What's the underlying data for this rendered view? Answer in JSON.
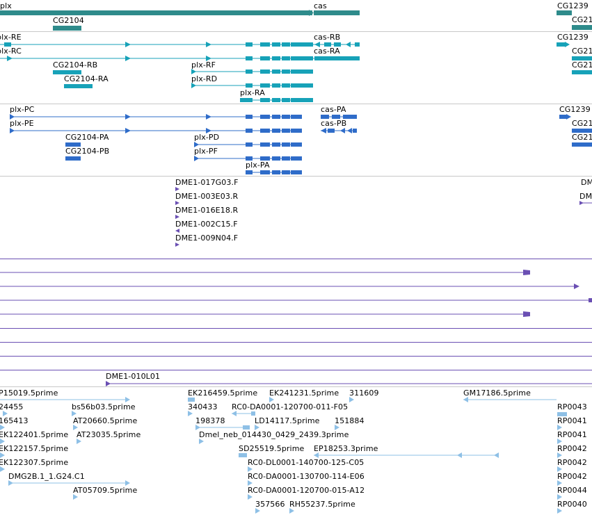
{
  "tracks": {
    "genes": {
      "color": "#2e8b8b",
      "labels": {
        "plx": "plx",
        "cas": "cas",
        "cg2104": "CG2104",
        "cg1239": "CG1239"
      }
    },
    "transcripts_flybase": {
      "color": "#17a2b8",
      "labels": {
        "plx_re": "plx-RE",
        "plx_rc": "plx-RC",
        "cas_rb": "cas-RB",
        "cas_ra": "cas-RA",
        "cg1239_a": "CG1239",
        "cg2104_rb": "CG2104-RB",
        "cg2104_ra": "CG2104-RA",
        "plx_rf": "plx-RF",
        "plx_rd": "plx-RD",
        "plx_ra": "plx-RA"
      }
    },
    "transcripts_protein": {
      "color": "#2f6cc9",
      "labels": {
        "plx_pc": "plx-PC",
        "plx_pe": "plx-PE",
        "cas_pa": "cas-PA",
        "cas_pb": "cas-PB",
        "cg1239_b": "CG1239",
        "cg2104_pa": "CG2104-PA",
        "cg2104_pb": "CG2104-PB",
        "plx_pd": "plx-PD",
        "plx_pf": "plx-PF",
        "plx_pa": "plx-PA"
      }
    },
    "bac_ends": {
      "color": "#6a4fb3",
      "labels": {
        "dme1_017g03": "DME1-017G03.F",
        "dme1_003e03": "DME1-003E03.R",
        "dme1_016e18": "DME1-016E18.R",
        "dme1_002c15": "DME1-002C15.F",
        "dme1_009n04": "DME1-009N04.F",
        "dme1_010l01": "DME1-010L01",
        "dm_a": "DM",
        "dm_b": "DM"
      }
    },
    "ests": {
      "color": "#8ec0e6",
      "labels": {
        "p15019": "P15019.5prime",
        "n24455": "24455",
        "bs56b03": "bs56b03.5prime",
        "n165413": "165413",
        "at20660": "AT20660.5prime",
        "ek122401": "EK122401.5prime",
        "at23035": "AT23035.5prime",
        "ek122157": "EK122157.5prime",
        "ek122307": "EK122307.5prime",
        "dmg2b": "DMG2B.1_1.G24.C1",
        "at05709": "AT05709.5prime",
        "ek216459": "EK216459.5prime",
        "ek241231": "EK241231.5prime",
        "n311609": "311609",
        "gm17186": "GM17186.5prime",
        "n340433": "340433",
        "rc0_da_011": "RC0-DA0001-120700-011-F05",
        "n198378": "198378",
        "ld14117": "LD14117.5prime",
        "n151884": "151884",
        "dmel_neb": "Dmel_neb_014430_0429_2439.3prime",
        "sd25519": "SD25519.5prime",
        "ep18253": "EP18253.3prime",
        "rc0_dl_125": "RC0-DL0001-140700-125-C05",
        "rc0_da_114": "RC0-DA0001-130700-114-E06",
        "rc0_da_015": "RC0-DA0001-120700-015-A12",
        "n357566": "357566",
        "rh55237": "RH55237.5prime",
        "rp_1": "RP0043",
        "rp_2": "RP0041",
        "rp_3": "RP0041",
        "rp_4": "RP0042",
        "rp_5": "RP0042",
        "rp_6": "RP0042",
        "rp_7": "RP0044",
        "rp_8": "RP0040"
      }
    }
  }
}
